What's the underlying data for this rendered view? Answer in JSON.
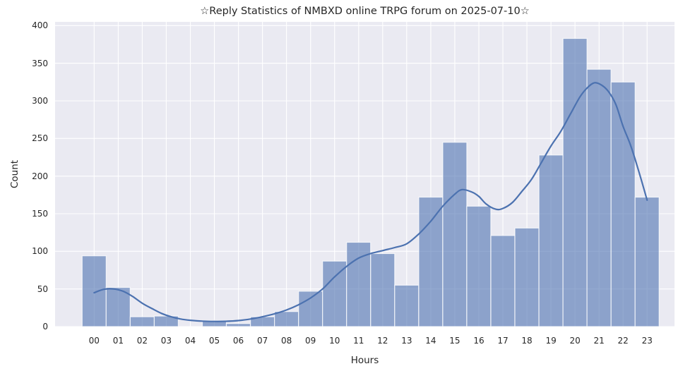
{
  "chart_data": {
    "type": "bar",
    "subtype": "histogram-with-kde-line",
    "title": "☆Reply Statistics of NMBXD online TRPG forum on 2025-07-10☆",
    "xlabel": "Hours",
    "ylabel": "Count",
    "categories": [
      "00",
      "01",
      "02",
      "03",
      "04",
      "05",
      "06",
      "07",
      "08",
      "09",
      "10",
      "11",
      "12",
      "13",
      "14",
      "15",
      "16",
      "17",
      "18",
      "19",
      "20",
      "21",
      "22",
      "23"
    ],
    "values": [
      94,
      52,
      13,
      14,
      0,
      8,
      4,
      13,
      20,
      47,
      87,
      112,
      97,
      55,
      172,
      245,
      160,
      121,
      131,
      228,
      383,
      342,
      325,
      172
    ],
    "yticks": [
      0,
      50,
      100,
      150,
      200,
      250,
      300,
      350,
      400
    ],
    "ylim": [
      0,
      405
    ],
    "grid": true,
    "legend": "none",
    "kde_line": [
      [
        0,
        45
      ],
      [
        0.4,
        49.5
      ],
      [
        0.8,
        50
      ],
      [
        1.2,
        47
      ],
      [
        1.6,
        40
      ],
      [
        2,
        31
      ],
      [
        2.4,
        24
      ],
      [
        2.8,
        17.5
      ],
      [
        3.2,
        13
      ],
      [
        3.6,
        10
      ],
      [
        4,
        8.3
      ],
      [
        4.5,
        7.2
      ],
      [
        5,
        6.8
      ],
      [
        5.5,
        7
      ],
      [
        6,
        8
      ],
      [
        6.5,
        10
      ],
      [
        7,
        13
      ],
      [
        7.5,
        17
      ],
      [
        8,
        22
      ],
      [
        8.5,
        29
      ],
      [
        9,
        38
      ],
      [
        9.5,
        50
      ],
      [
        10,
        66
      ],
      [
        10.5,
        80
      ],
      [
        11,
        91
      ],
      [
        11.5,
        97
      ],
      [
        12,
        101
      ],
      [
        12.5,
        105
      ],
      [
        13,
        110
      ],
      [
        13.5,
        123
      ],
      [
        14,
        140
      ],
      [
        14.5,
        160
      ],
      [
        15,
        176
      ],
      [
        15.3,
        182
      ],
      [
        15.7,
        179
      ],
      [
        16,
        173
      ],
      [
        16.3,
        163
      ],
      [
        16.7,
        156
      ],
      [
        17,
        157
      ],
      [
        17.4,
        165
      ],
      [
        17.8,
        180
      ],
      [
        18.2,
        196
      ],
      [
        18.6,
        218
      ],
      [
        19,
        240
      ],
      [
        19.4,
        259
      ],
      [
        19.8,
        282
      ],
      [
        20.2,
        305
      ],
      [
        20.5,
        317
      ],
      [
        20.8,
        324
      ],
      [
        21.1,
        321
      ],
      [
        21.4,
        312
      ],
      [
        21.7,
        295
      ],
      [
        22,
        266
      ],
      [
        22.3,
        242
      ],
      [
        22.6,
        212
      ],
      [
        23,
        168
      ]
    ],
    "colors": {
      "figure_background": "#ffffff",
      "axes_background": "#eaeaf2",
      "grid": "#ffffff",
      "bar_fill": "rgba(76,114,176,0.6)",
      "bar_edge": "rgba(255,255,255,0.75)",
      "kde_line": "#4c72b0",
      "text": "#262626"
    }
  }
}
